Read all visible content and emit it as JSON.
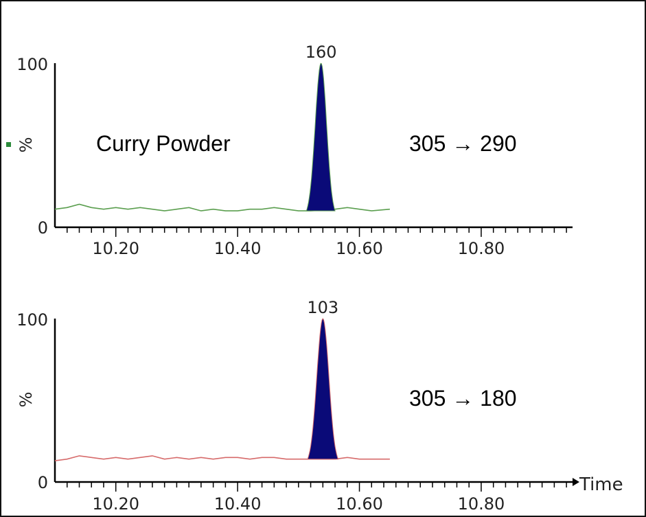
{
  "chart_data": [
    {
      "type": "line",
      "title": "",
      "annotation": "Curry Powder",
      "transition": "305 → 290",
      "ylabel": "%",
      "xlabel": "",
      "xlim": [
        10.1,
        10.95
      ],
      "ylim": [
        0,
        100
      ],
      "y_ticks": [
        "0",
        "100"
      ],
      "x_ticks": [
        "10.20",
        "10.40",
        "10.60",
        "10.80"
      ],
      "x_tick_values": [
        10.2,
        10.4,
        10.6,
        10.8
      ],
      "baseline_color": "#5a9e4e",
      "peak_color": "#0a0a78",
      "baseline": {
        "x": [
          10.1,
          10.12,
          10.14,
          10.16,
          10.18,
          10.2,
          10.22,
          10.24,
          10.26,
          10.28,
          10.3,
          10.32,
          10.34,
          10.36,
          10.38,
          10.4,
          10.42,
          10.44,
          10.46,
          10.48,
          10.5,
          10.52,
          10.56,
          10.58,
          10.6,
          10.62,
          10.65
        ],
        "y": [
          11,
          12,
          14,
          12,
          11,
          12,
          11,
          12,
          11,
          10,
          11,
          12,
          10,
          11,
          10,
          10,
          11,
          11,
          12,
          11,
          10,
          10,
          11,
          12,
          11,
          10,
          11
        ]
      },
      "peak": {
        "label": "160",
        "apex_x": 10.537,
        "apex_y": 100,
        "start_x": 10.513,
        "end_x": 10.56,
        "base_y": 10
      }
    },
    {
      "type": "line",
      "title": "",
      "annotation": "",
      "transition": "305 → 180",
      "ylabel": "%",
      "xlabel": "Time",
      "xlim": [
        10.1,
        10.95
      ],
      "ylim": [
        0,
        100
      ],
      "y_ticks": [
        "0",
        "100"
      ],
      "x_ticks": [
        "10.20",
        "10.40",
        "10.60",
        "10.80"
      ],
      "x_tick_values": [
        10.2,
        10.4,
        10.6,
        10.8
      ],
      "baseline_color": "#d66a6a",
      "peak_color": "#0a0a78",
      "baseline": {
        "x": [
          10.1,
          10.12,
          10.14,
          10.16,
          10.18,
          10.2,
          10.22,
          10.24,
          10.26,
          10.28,
          10.3,
          10.32,
          10.34,
          10.36,
          10.38,
          10.4,
          10.42,
          10.44,
          10.46,
          10.48,
          10.5,
          10.52,
          10.56,
          10.58,
          10.6,
          10.62,
          10.65
        ],
        "y": [
          13,
          14,
          16,
          15,
          14,
          15,
          14,
          15,
          16,
          14,
          15,
          14,
          15,
          14,
          15,
          15,
          14,
          15,
          15,
          14,
          14,
          14,
          14,
          15,
          14,
          14,
          14
        ]
      },
      "peak": {
        "label": "103",
        "apex_x": 10.54,
        "apex_y": 100,
        "start_x": 10.515,
        "end_x": 10.565,
        "base_y": 14
      }
    }
  ]
}
